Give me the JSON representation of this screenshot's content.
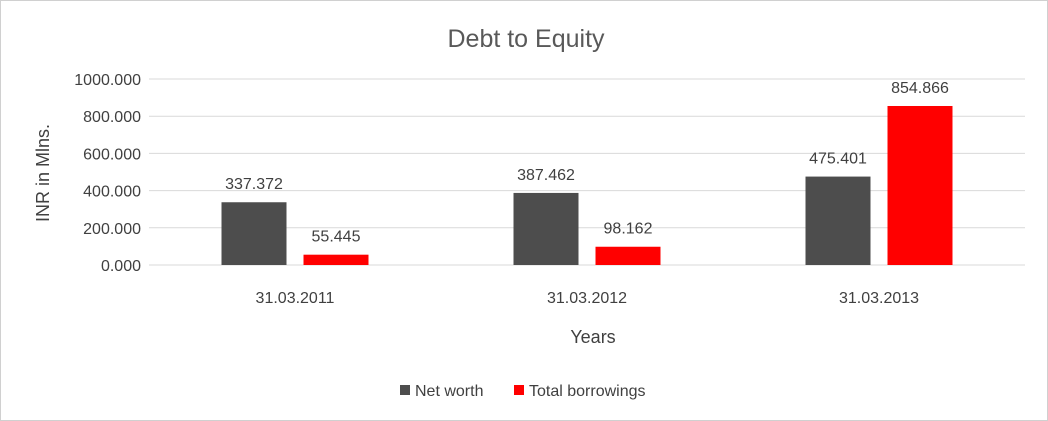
{
  "chart_data": {
    "type": "bar",
    "title": "Debt to Equity",
    "xlabel": "Years",
    "ylabel": "INR in Mlns.",
    "categories": [
      "31.03.2011",
      "31.03.2012",
      "31.03.2013"
    ],
    "series": [
      {
        "name": "Net worth",
        "values": [
          337.372,
          387.462,
          475.401
        ],
        "labels": [
          "337.372",
          "387.462",
          "475.401"
        ],
        "color": "#4d4d4d"
      },
      {
        "name": "Total borrowings",
        "values": [
          55.445,
          98.162,
          854.866
        ],
        "labels": [
          "55.445",
          "98.162",
          "854.866"
        ],
        "color": "#ff0000"
      }
    ],
    "ylim": [
      0,
      1000
    ],
    "yticks": [
      "0.000",
      "200.000",
      "400.000",
      "600.000",
      "800.000",
      "1000.000"
    ],
    "grid": true,
    "legend_position": "bottom"
  }
}
